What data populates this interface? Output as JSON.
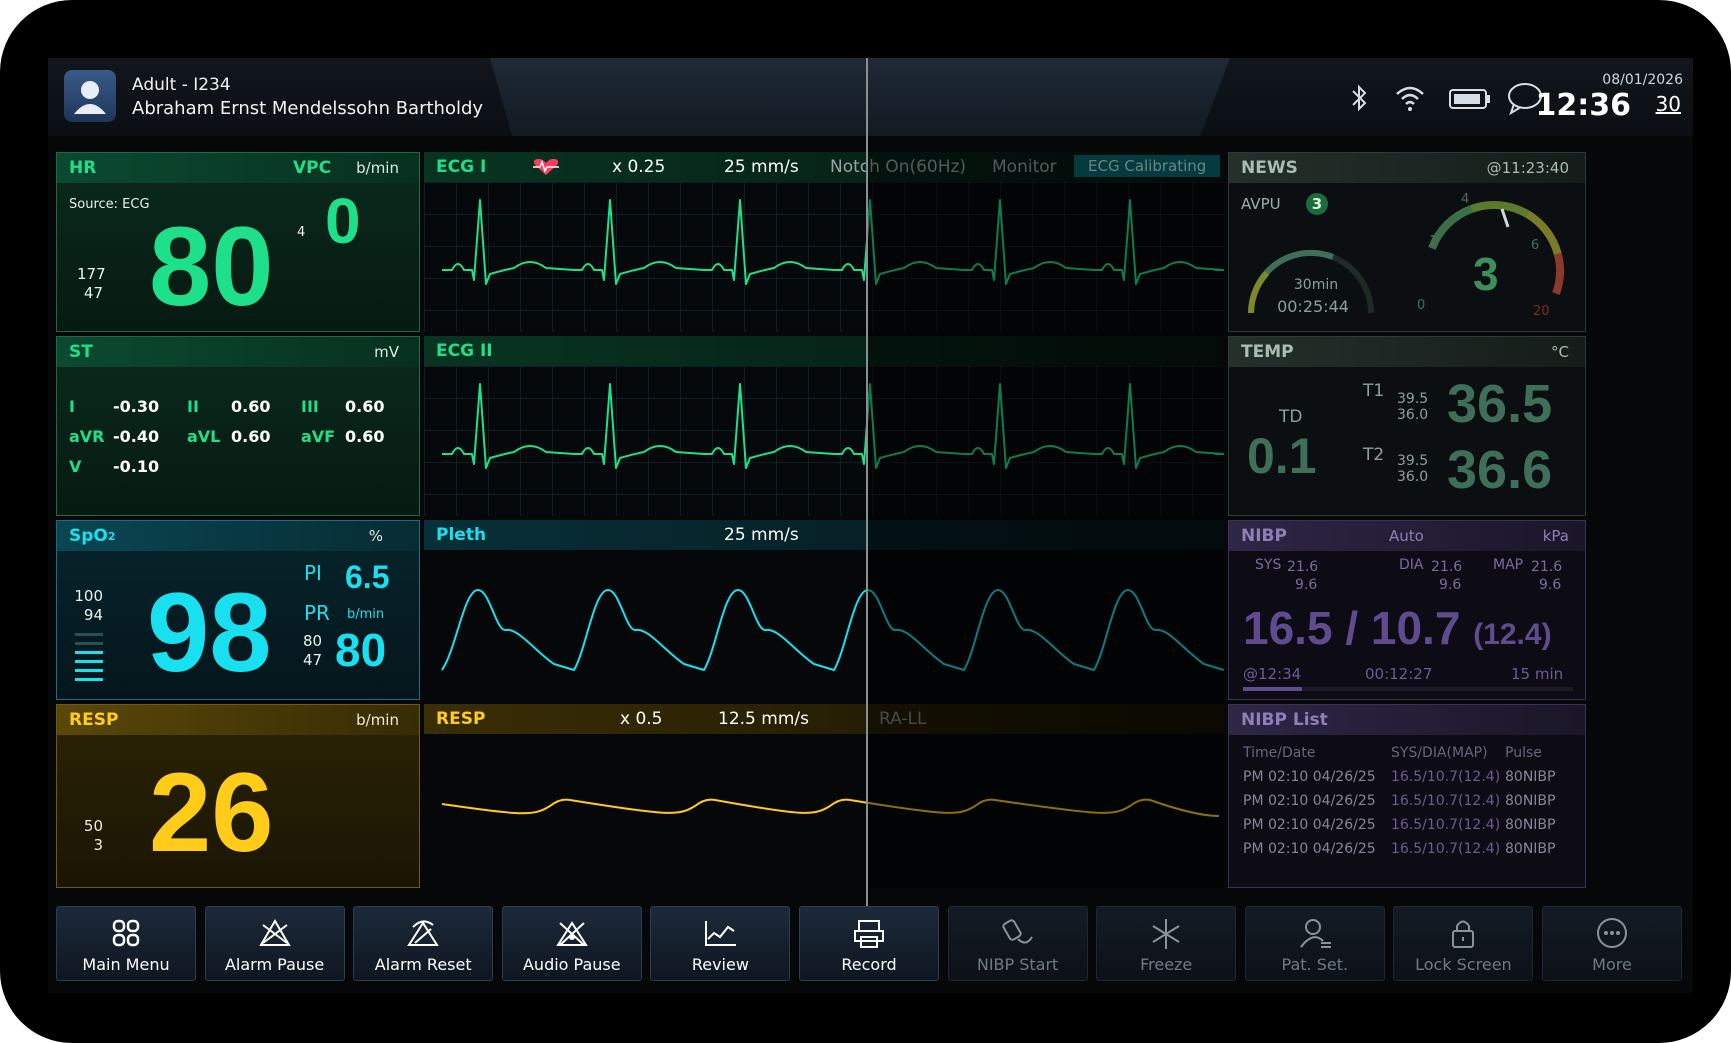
{
  "patient": {
    "category": "Adult - I234",
    "name": "Abraham Ernst Mendelssohn Bartholdy"
  },
  "clock": {
    "date": "08/01/2026",
    "time": "12:36",
    "seconds": "30"
  },
  "status_icons": [
    "bluetooth-icon",
    "wifi-icon",
    "battery-icon",
    "message-icon"
  ],
  "hr": {
    "label": "HR",
    "unit": "b/min",
    "vpc_label": "VPC",
    "vpc_value": "0",
    "vpc_small": "4",
    "source": "Source: ECG",
    "value": "80",
    "high": "177",
    "low": "47"
  },
  "ecg1": {
    "label": "ECG I",
    "gain": "x 0.25",
    "speed": "25 mm/s",
    "notch": "Notch On(60Hz)",
    "mode": "Monitor",
    "calibrating": "ECG Calibrating"
  },
  "ecg2": {
    "label": "ECG II"
  },
  "st": {
    "label": "ST",
    "unit": "mV",
    "leads": [
      {
        "name": "I",
        "value": "-0.30"
      },
      {
        "name": "II",
        "value": "0.60"
      },
      {
        "name": "III",
        "value": "0.60"
      },
      {
        "name": "aVR",
        "value": "-0.40"
      },
      {
        "name": "aVL",
        "value": "0.60"
      },
      {
        "name": "aVF",
        "value": "0.60"
      },
      {
        "name": "V",
        "value": "-0.10"
      }
    ]
  },
  "spo2": {
    "label": "SpO",
    "sub": "2",
    "unit": "%",
    "value": "98",
    "high": "100",
    "low": "94",
    "pi_label": "PI",
    "pi_value": "6.5",
    "pr_label": "PR",
    "pr_unit": "b/min",
    "pr_value": "80",
    "pr_high": "80",
    "pr_low": "47"
  },
  "pleth": {
    "label": "Pleth",
    "speed": "25 mm/s"
  },
  "resp": {
    "label": "RESP",
    "unit": "b/min",
    "value": "26",
    "high": "50",
    "low": "3"
  },
  "resp_wave": {
    "label": "RESP",
    "gain": "x 0.5",
    "speed": "12.5 mm/s",
    "lead": "RA-LL"
  },
  "news": {
    "label": "NEWS",
    "time": "@11:23:40",
    "avpu_label": "AVPU",
    "avpu_value": "3",
    "interval": "30min",
    "countdown": "00:25:44",
    "score": "3",
    "gauge_ticks": [
      "0",
      "1",
      "4",
      "6",
      "20"
    ]
  },
  "temp": {
    "label": "TEMP",
    "unit": "°C",
    "td_label": "TD",
    "td_value": "0.1",
    "t1_label": "T1",
    "t1_high": "39.5",
    "t1_low": "36.0",
    "t1_value": "36.5",
    "t2_label": "T2",
    "t2_high": "39.5",
    "t2_low": "36.0",
    "t2_value": "36.6"
  },
  "nibp": {
    "label": "NIBP",
    "mode": "Auto",
    "unit": "kPa",
    "sys_label": "SYS",
    "sys_high": "21.6",
    "sys_low": "9.6",
    "dia_label": "DIA",
    "dia_high": "21.6",
    "dia_low": "9.6",
    "map_label": "MAP",
    "map_high": "21.6",
    "map_low": "9.6",
    "sys": "16.5",
    "slash": "/",
    "dia": "10.7",
    "map": "(12.4)",
    "measured_at": "@12:34",
    "countdown": "00:12:27",
    "interval": "15 min"
  },
  "nibp_list": {
    "label": "NIBP List",
    "headers": [
      "Time/Date",
      "SYS/DIA(MAP)",
      "Pulse"
    ],
    "rows": [
      [
        "PM 02:10 04/26/25",
        "16.5/10.7(12.4)",
        "80NIBP"
      ],
      [
        "PM 02:10 04/26/25",
        "16.5/10.7(12.4)",
        "80NIBP"
      ],
      [
        "PM 02:10 04/26/25",
        "16.5/10.7(12.4)",
        "80NIBP"
      ],
      [
        "PM 02:10 04/26/25",
        "16.5/10.7(12.4)",
        "80NIBP"
      ]
    ]
  },
  "toolbar": [
    {
      "label": "Main Menu",
      "icon": "grid-icon",
      "enabled": true
    },
    {
      "label": "Alarm Pause",
      "icon": "alarm-pause-icon",
      "enabled": true
    },
    {
      "label": "Alarm Reset",
      "icon": "alarm-reset-icon",
      "enabled": true
    },
    {
      "label": "Audio Pause",
      "icon": "audio-pause-icon",
      "enabled": true
    },
    {
      "label": "Review",
      "icon": "trend-chart-icon",
      "enabled": true
    },
    {
      "label": "Record",
      "icon": "printer-icon",
      "enabled": true
    },
    {
      "label": "NIBP Start",
      "icon": "cuff-icon",
      "enabled": false
    },
    {
      "label": "Freeze",
      "icon": "snowflake-icon",
      "enabled": false
    },
    {
      "label": "Pat. Set.",
      "icon": "patient-settings-icon",
      "enabled": false
    },
    {
      "label": "Lock Screen",
      "icon": "lock-icon",
      "enabled": false
    },
    {
      "label": "More",
      "icon": "more-icon",
      "enabled": false
    }
  ],
  "colors": {
    "ecg": "#1ee08a",
    "spo2": "#19e0ef",
    "resp": "#ffcc1a",
    "news": "#3f6f58",
    "temp": "#3f6f58",
    "nibp": "#5f4c8f",
    "calibrating_bg": "#0a6a72"
  }
}
